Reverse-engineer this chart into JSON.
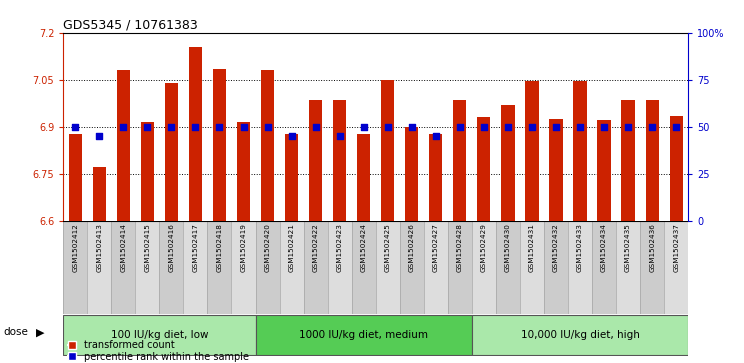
{
  "title": "GDS5345 / 10761383",
  "samples": [
    "GSM1502412",
    "GSM1502413",
    "GSM1502414",
    "GSM1502415",
    "GSM1502416",
    "GSM1502417",
    "GSM1502418",
    "GSM1502419",
    "GSM1502420",
    "GSM1502421",
    "GSM1502422",
    "GSM1502423",
    "GSM1502424",
    "GSM1502425",
    "GSM1502426",
    "GSM1502427",
    "GSM1502428",
    "GSM1502429",
    "GSM1502430",
    "GSM1502431",
    "GSM1502432",
    "GSM1502433",
    "GSM1502434",
    "GSM1502435",
    "GSM1502436",
    "GSM1502437"
  ],
  "bar_values": [
    6.875,
    6.77,
    7.08,
    6.915,
    7.04,
    7.155,
    7.085,
    6.915,
    7.08,
    6.875,
    6.985,
    6.985,
    6.875,
    7.05,
    6.9,
    6.875,
    6.985,
    6.93,
    6.97,
    7.045,
    6.925,
    7.045,
    6.92,
    6.985,
    6.985,
    6.935
  ],
  "percentile_values": [
    50,
    45,
    50,
    50,
    50,
    50,
    50,
    50,
    50,
    45,
    50,
    45,
    50,
    50,
    50,
    45,
    50,
    50,
    50,
    50,
    50,
    50,
    50,
    50,
    50,
    50
  ],
  "bar_color": "#cc2200",
  "dot_color": "#0000cc",
  "ymin": 6.6,
  "ymax": 7.2,
  "yticks": [
    6.6,
    6.75,
    6.9,
    7.05,
    7.2
  ],
  "ytick_labels": [
    "6.6",
    "6.75",
    "6.9",
    "7.05",
    "7.2"
  ],
  "right_yticks": [
    0,
    25,
    50,
    75,
    100
  ],
  "right_ytick_labels": [
    "0",
    "25",
    "50",
    "75",
    "100%"
  ],
  "groups": [
    {
      "label": "100 IU/kg diet, low",
      "start": 0,
      "end": 8,
      "color": "#aae8aa"
    },
    {
      "label": "1000 IU/kg diet, medium",
      "start": 8,
      "end": 17,
      "color": "#55cc55"
    },
    {
      "label": "10,000 IU/kg diet, high",
      "start": 17,
      "end": 26,
      "color": "#aae8aa"
    }
  ],
  "dose_label": "dose",
  "legend_bar_label": "transformed count",
  "legend_dot_label": "percentile rank within the sample",
  "bg_color": "#ffffff",
  "tick_label_bg": "#cccccc",
  "tick_label_bg_alt": "#dddddd"
}
